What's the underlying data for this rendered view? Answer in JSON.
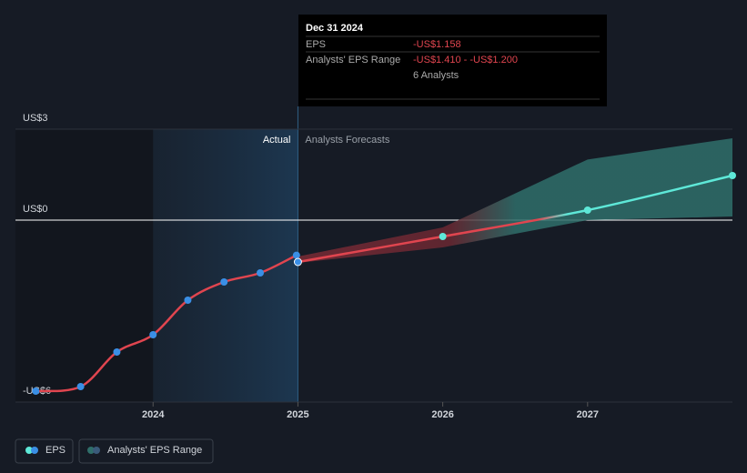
{
  "chart_data": {
    "type": "line",
    "xlim": [
      2023.05,
      2028
    ],
    "xticks": [
      2024,
      2025,
      2026,
      2027
    ],
    "ylim": [
      -6,
      3
    ],
    "yticks": [
      {
        "value": 3,
        "label": "US$3"
      },
      {
        "value": 0,
        "label": "US$0"
      },
      {
        "value": -6,
        "label": "-US$6"
      }
    ],
    "actual_label": "Actual",
    "forecast_label": "Analysts Forecasts",
    "series": [
      {
        "name": "EPS",
        "color": "#e0454f",
        "point_color": "#3a8fe6",
        "x": [
          2023.19,
          2023.5,
          2023.75,
          2024.0,
          2024.24,
          2024.49,
          2024.74,
          2024.99
        ],
        "values": [
          -5.64,
          -5.49,
          -4.35,
          -3.78,
          -2.64,
          -2.04,
          -1.74,
          -1.158
        ]
      }
    ],
    "forecast": {
      "color": "#5ee8d8",
      "x": [
        2025,
        2026,
        2027,
        2028
      ],
      "values": [
        -1.38,
        -0.54,
        0.33,
        1.47
      ]
    },
    "range": {
      "name": "Analysts' EPS Range",
      "color": "#2f6e6a",
      "x": [
        2025,
        2026,
        2027,
        2028
      ],
      "low": [
        -1.41,
        -0.9,
        0.0,
        0.12
      ],
      "high": [
        -1.2,
        -0.24,
        2.0,
        2.7
      ]
    },
    "tooltip": {
      "date": "Dec 31 2024",
      "rows": [
        {
          "label": "EPS",
          "value": "-US$1.158"
        },
        {
          "label": "Analysts' EPS Range",
          "value": "-US$1.410 - -US$1.200"
        }
      ],
      "analysts": "6 Analysts"
    }
  }
}
